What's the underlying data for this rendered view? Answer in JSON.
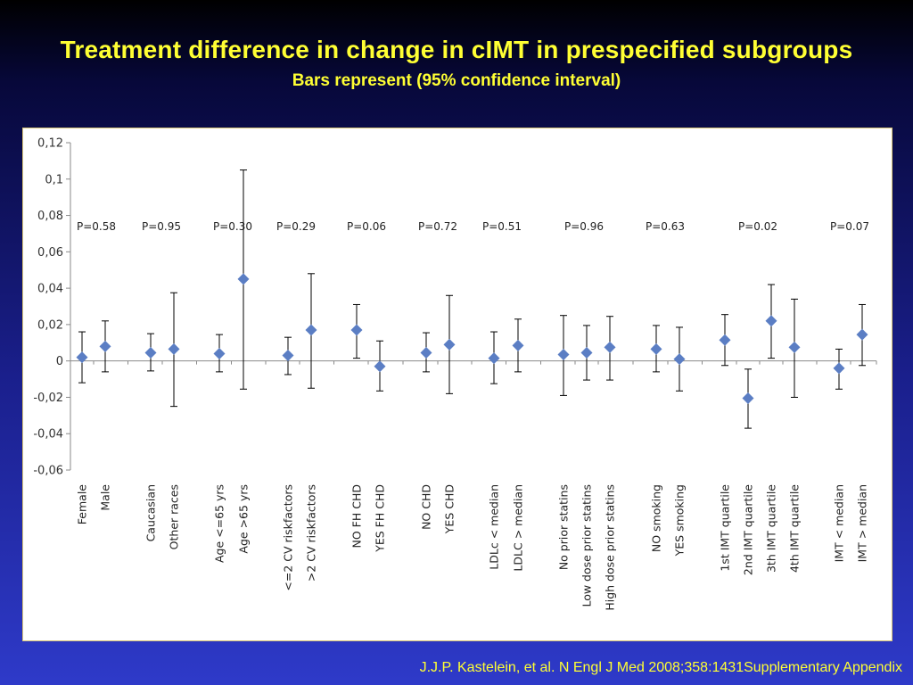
{
  "slide": {
    "title": "Treatment difference in change in cIMT in prespecified subgroups",
    "subtitle": "Bars represent (95% confidence interval)",
    "footer": "J.J.P. Kastelein, et al. N Engl J Med 2008;358:1431Supplementary Appendix"
  },
  "colors": {
    "background_top": "#000000",
    "background_bottom": "#2e3ac9",
    "title_text": "#ffff33",
    "marker": "#5b7ec4",
    "error_bar": "#000000",
    "panel_border": "#d8c478"
  },
  "chart_data": {
    "type": "scatter",
    "marker": "diamond",
    "error_bars": true,
    "title": "",
    "xlabel": "",
    "ylabel": "",
    "ylim": [
      -0.06,
      0.12
    ],
    "yticks": [
      -0.06,
      -0.04,
      -0.02,
      0,
      0.02,
      0.04,
      0.06,
      0.08,
      0.1,
      0.12
    ],
    "ytick_labels": [
      "-0,06",
      "-0,04",
      "-0,02",
      "0",
      "0,02",
      "0,04",
      "0,06",
      "0,08",
      "0,1",
      "0,12"
    ],
    "grid": false,
    "legend": "none",
    "groups": [
      {
        "p_label": "P=0.58",
        "items": [
          {
            "label": "Female",
            "value": 0.002,
            "lower": -0.012,
            "upper": 0.016
          },
          {
            "label": "Male",
            "value": 0.008,
            "lower": -0.006,
            "upper": 0.022
          }
        ]
      },
      {
        "p_label": "P=0.95",
        "items": [
          {
            "label": "Caucasian",
            "value": 0.0045,
            "lower": -0.0055,
            "upper": 0.015
          },
          {
            "label": "Other races",
            "value": 0.0065,
            "lower": -0.025,
            "upper": 0.0375
          }
        ]
      },
      {
        "p_label": "P=0.30",
        "items": [
          {
            "label": "Age <=65 yrs",
            "value": 0.004,
            "lower": -0.006,
            "upper": 0.0145
          },
          {
            "label": "Age >65 yrs",
            "value": 0.045,
            "lower": -0.0155,
            "upper": 0.105
          }
        ]
      },
      {
        "p_label": "P=0.29",
        "items": [
          {
            "label": "<=2 CV riskfactors",
            "value": 0.003,
            "lower": -0.0075,
            "upper": 0.013
          },
          {
            "label": ">2 CV riskfactors",
            "value": 0.017,
            "lower": -0.015,
            "upper": 0.048
          }
        ]
      },
      {
        "p_label": "P=0.06",
        "items": [
          {
            "label": "NO  FH CHD",
            "value": 0.017,
            "lower": 0.0015,
            "upper": 0.031
          },
          {
            "label": "YES  FH CHD",
            "value": -0.003,
            "lower": -0.0165,
            "upper": 0.011
          }
        ]
      },
      {
        "p_label": "P=0.72",
        "items": [
          {
            "label": "NO CHD",
            "value": 0.0045,
            "lower": -0.006,
            "upper": 0.0155
          },
          {
            "label": "YES CHD",
            "value": 0.009,
            "lower": -0.018,
            "upper": 0.036
          }
        ]
      },
      {
        "p_label": "P=0.51",
        "items": [
          {
            "label": "LDLc < median",
            "value": 0.0015,
            "lower": -0.0125,
            "upper": 0.016
          },
          {
            "label": "LDLC > median",
            "value": 0.0085,
            "lower": -0.006,
            "upper": 0.023
          }
        ]
      },
      {
        "p_label": "P=0.96",
        "items": [
          {
            "label": "No prior statins",
            "value": 0.0035,
            "lower": -0.019,
            "upper": 0.025
          },
          {
            "label": "Low dose prior statins",
            "value": 0.0045,
            "lower": -0.0105,
            "upper": 0.0195
          },
          {
            "label": "High dose prior statins",
            "value": 0.0075,
            "lower": -0.0105,
            "upper": 0.0245
          }
        ]
      },
      {
        "p_label": "P=0.63",
        "items": [
          {
            "label": "NO smoking",
            "value": 0.0065,
            "lower": -0.006,
            "upper": 0.0195
          },
          {
            "label": "YES smoking",
            "value": 0.001,
            "lower": -0.0165,
            "upper": 0.0185
          }
        ]
      },
      {
        "p_label": "P=0.02",
        "items": [
          {
            "label": "1st IMT quartile",
            "value": 0.0115,
            "lower": -0.0025,
            "upper": 0.0255
          },
          {
            "label": "2nd IMT quartile",
            "value": -0.0205,
            "lower": -0.037,
            "upper": -0.0045
          },
          {
            "label": "3th IMT quartile",
            "value": 0.022,
            "lower": 0.0015,
            "upper": 0.042
          },
          {
            "label": "4th IMT quartile",
            "value": 0.0075,
            "lower": -0.02,
            "upper": 0.034
          }
        ]
      },
      {
        "p_label": "P=0.07",
        "items": [
          {
            "label": "IMT < median",
            "value": -0.004,
            "lower": -0.0155,
            "upper": 0.0065
          },
          {
            "label": "IMT > median",
            "value": 0.0145,
            "lower": -0.0025,
            "upper": 0.031
          }
        ]
      }
    ]
  }
}
